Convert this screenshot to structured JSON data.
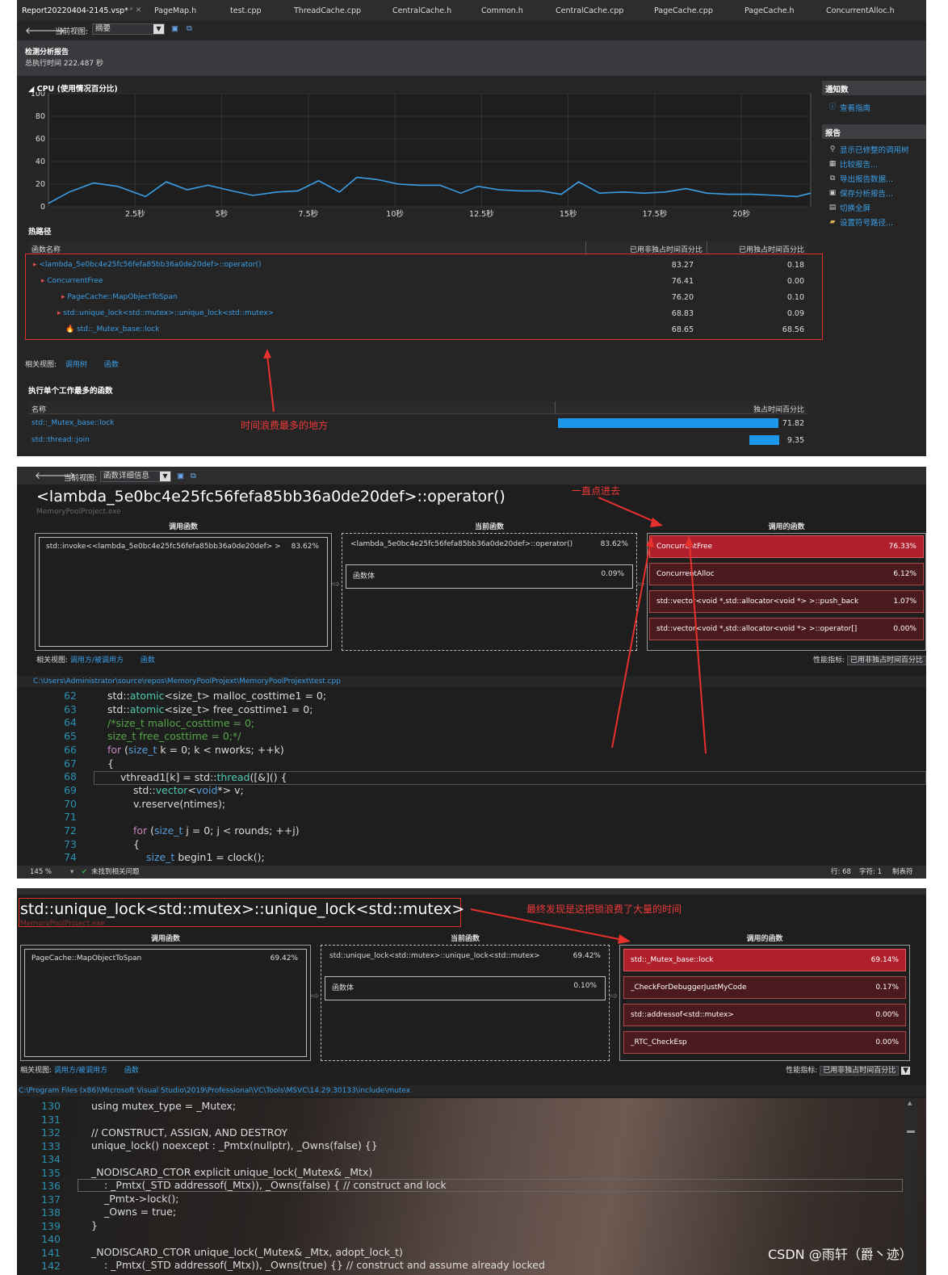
{
  "p1": {
    "tabs": [
      "Report20220404-2145.vsp*",
      "PageMap.h",
      "test.cpp",
      "ThreadCache.cpp",
      "CentralCache.h",
      "Common.h",
      "CentralCache.cpp",
      "PageCache.cpp",
      "PageCache.h",
      "ConcurrentAlloc.h"
    ],
    "view_label": "当前视图:",
    "view_value": "摘要",
    "report_title": "检测分析报告",
    "report_time": "总执行时间 222.487 秒",
    "cpu_title": "CPU (使用情况百分比)",
    "sidebar": {
      "notify_head": "通知数",
      "notify_item": "查看指南",
      "report_head": "报告",
      "items": [
        "显示已修整的调用树",
        "比较报告...",
        "导出报告数据...",
        "保存分析报告...",
        "切换全屏",
        "设置符号路径..."
      ]
    },
    "hot_title": "热路径",
    "hot_cols": [
      "函数名称",
      "已用非独占时间百分比",
      "已用独占时间百分比"
    ],
    "hot_rows": [
      {
        "name": "<lambda_5e0bc4e25fc56fefa85bb36a0de20def>::operator()",
        "incl": "83.27",
        "excl": "0.18"
      },
      {
        "name": "ConcurrentFree",
        "incl": "76.41",
        "excl": "0.00"
      },
      {
        "name": "PageCache::MapObjectToSpan",
        "incl": "76.20",
        "excl": "0.10"
      },
      {
        "name": "std::unique_lock<std::mutex>::unique_lock<std::mutex>",
        "incl": "68.83",
        "excl": "0.09"
      },
      {
        "name": "std::_Mutex_base::lock",
        "incl": "68.65",
        "excl": "68.56"
      }
    ],
    "related_label": "相关视图:",
    "related_links": [
      "调用树",
      "函数"
    ],
    "most_title": "执行单个工作最多的函数",
    "most_cols": [
      "名称",
      "独占时间百分比"
    ],
    "most_rows": [
      {
        "name": "std::_Mutex_base::lock",
        "val": "71.82"
      },
      {
        "name": "std::thread::join",
        "val": "9.35"
      }
    ],
    "annotation": "时间浪费最多的地方"
  },
  "chart_data": {
    "type": "line",
    "title": "CPU (使用情况百分比)",
    "xlabel": "",
    "ylabel": "",
    "ylim": [
      0,
      100
    ],
    "xlim": [
      0,
      22
    ],
    "yticks": [
      "100",
      "80",
      "60",
      "40",
      "20",
      "0"
    ],
    "xticks": [
      "2.5秒",
      "5秒",
      "7.5秒",
      "10秒",
      "12.5秒",
      "15秒",
      "17.5秒",
      "20秒"
    ],
    "xtick_values": [
      2.5,
      5,
      7.5,
      10,
      12.5,
      15,
      17.5,
      20
    ],
    "series": [
      {
        "name": "",
        "x": [
          0,
          0.6,
          1.3,
          2,
          2.8,
          3.4,
          4,
          4.6,
          5.3,
          5.9,
          6.6,
          7.2,
          7.8,
          8.4,
          8.9,
          9.5,
          10.1,
          10.7,
          11.3,
          11.9,
          12.4,
          13,
          13.6,
          14.2,
          14.8,
          15.3,
          15.9,
          16.6,
          17.2,
          17.8,
          18.4,
          19,
          19.6,
          20.3,
          21,
          21.6,
          22
        ],
        "y": [
          3,
          13,
          21,
          18,
          9,
          22,
          15,
          19,
          14,
          10,
          13,
          14,
          23,
          13,
          26,
          24,
          20,
          19,
          19,
          12,
          18,
          15,
          14,
          14,
          11,
          22,
          12,
          13,
          12,
          13,
          16,
          12,
          11,
          11,
          10,
          9,
          12
        ]
      }
    ]
  },
  "p2": {
    "view_label": "当前视图:",
    "view_value": "函数详细信息",
    "title": "<lambda_5e0bc4e25fc56fefa85bb36a0de20def>::operator()",
    "project": "MemoryPoolProject.exe",
    "col_callers": "调用函数",
    "col_current": "当前函数",
    "col_callees": "调用的函数",
    "caller": {
      "name": "std::invoke<<lambda_5e0bc4e25fc56fefa85bb36a0de20def> >",
      "val": "83.62%"
    },
    "current": {
      "name": "<lambda_5e0bc4e25fc56fefa85bb36a0de20def>::operator()",
      "val": "83.62%"
    },
    "body": {
      "name": "函数体",
      "val": "0.09%"
    },
    "callees": [
      {
        "name": "ConcurrentFree",
        "val": "76.33%"
      },
      {
        "name": "ConcurrentAlloc",
        "val": "6.12%"
      },
      {
        "name": "std::vector<void *,std::allocator<void *> >::push_back",
        "val": "1.07%"
      },
      {
        "name": "std::vector<void *,std::allocator<void *> >::operator[]",
        "val": "0.00%"
      }
    ],
    "related_label": "相关视图:",
    "related_links": [
      "调用方/被调用方",
      "函数"
    ],
    "metric_label": "性能指标:",
    "metric_value": "已用非独占时间百分比",
    "path": "C:\\Users\\Administrator\\source\\repos\\MemoryPoolProjext\\MemoryPoolProjext\\test.cpp",
    "lines": [
      "62",
      "63",
      "64",
      "65",
      "66",
      "67",
      "68",
      "69",
      "70",
      "71",
      "72",
      "73",
      "74"
    ],
    "zoom": "145 %",
    "issues": "未找到相关问题",
    "status_row": "行: 68",
    "status_col": "字符: 1",
    "status_tab": "制表符",
    "annotation": "一直点进去"
  },
  "p3": {
    "title": "std::unique_lock<std::mutex>::unique_lock<std::mutex>",
    "project": "MemoryPoolProject.exe",
    "col_callers": "调用函数",
    "col_current": "当前函数",
    "col_callees": "调用的函数",
    "caller": {
      "name": "PageCache::MapObjectToSpan",
      "val": "69.42%"
    },
    "current": {
      "name": "std::unique_lock<std::mutex>::unique_lock<std::mutex>",
      "val": "69.42%"
    },
    "body": {
      "name": "函数体",
      "val": "0.10%"
    },
    "callees": [
      {
        "name": "std::_Mutex_base::lock",
        "val": "69.14%"
      },
      {
        "name": "_CheckForDebuggerJustMyCode",
        "val": "0.17%"
      },
      {
        "name": "std::addressof<std::mutex>",
        "val": "0.00%"
      },
      {
        "name": "_RTC_CheckEsp",
        "val": "0.00%"
      }
    ],
    "related_label": "相关视图:",
    "related_links": [
      "调用方/被调用方",
      "函数"
    ],
    "metric_label": "性能指标:",
    "metric_value": "已用非独占时间百分比",
    "path": "C:\\Program Files (x86)\\Microsoft Visual Studio\\2019\\Professional\\VC\\Tools\\MSVC\\14.29.30133\\include\\mutex",
    "lines": [
      "130",
      "131",
      "132",
      "133",
      "134",
      "135",
      "136",
      "137",
      "138",
      "139",
      "140",
      "141",
      "142"
    ],
    "annotation": "最终发现是这把锁浪费了大量的时间"
  },
  "watermark": "CSDN @雨轩（爵丶迹）"
}
